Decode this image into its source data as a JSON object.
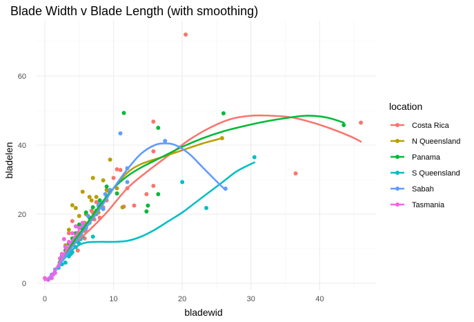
{
  "chart_data": {
    "type": "scatter",
    "title": "Blade Width v Blade Length (with smoothing)",
    "xlabel": "bladewid",
    "ylabel": "bladelen",
    "xlim": [
      -1.2,
      48.2
    ],
    "ylim": [
      -2,
      76
    ],
    "xticks": [
      0,
      10,
      20,
      30,
      40
    ],
    "yticks": [
      0,
      20,
      40,
      60
    ],
    "grid": true,
    "legend": {
      "title": "location",
      "position": "right"
    },
    "series": [
      {
        "name": "Costa Rica",
        "color": "#F8766D",
        "points": [
          [
            20.5,
            72
          ],
          [
            46,
            46.5
          ],
          [
            36.5,
            31.8
          ],
          [
            15.8,
            46.8
          ],
          [
            15.8,
            38.2
          ],
          [
            15.8,
            28.2
          ],
          [
            14.8,
            25.8
          ],
          [
            13,
            22.5
          ],
          [
            12,
            27.5
          ],
          [
            11.5,
            22.2
          ],
          [
            11,
            32.8
          ],
          [
            10.5,
            33
          ],
          [
            10,
            30.5
          ],
          [
            9.5,
            26.5
          ],
          [
            8.5,
            22
          ],
          [
            7.5,
            23.5
          ],
          [
            7,
            20.5
          ],
          [
            6.5,
            17.5
          ],
          [
            5.5,
            16
          ],
          [
            5,
            14.5
          ],
          [
            4.5,
            13.5
          ],
          [
            4,
            18
          ],
          [
            3.5,
            14.5
          ],
          [
            3,
            11
          ],
          [
            2.5,
            8.5
          ],
          [
            6,
            15
          ],
          [
            8,
            19
          ],
          [
            9,
            24
          ],
          [
            5.8,
            13
          ],
          [
            4.8,
            9.5
          ],
          [
            7.2,
            18.5
          ],
          [
            3.8,
            9
          ],
          [
            6.8,
            21
          ]
        ],
        "smooth": [
          [
            3,
            9.5
          ],
          [
            6,
            14.5
          ],
          [
            9,
            20.5
          ],
          [
            12,
            27.5
          ],
          [
            15,
            32.5
          ],
          [
            18,
            37
          ],
          [
            21,
            41.5
          ],
          [
            24,
            45
          ],
          [
            27,
            47.5
          ],
          [
            30,
            48.5
          ],
          [
            33,
            48.5
          ],
          [
            36,
            48
          ],
          [
            39,
            46.5
          ],
          [
            42,
            44.5
          ],
          [
            44.5,
            42.5
          ],
          [
            46,
            41
          ]
        ]
      },
      {
        "name": "N Queensland",
        "color": "#B79F00",
        "points": [
          [
            25.8,
            42
          ],
          [
            10.5,
            27.5
          ],
          [
            11.3,
            22
          ],
          [
            9.5,
            35.8
          ],
          [
            9,
            27
          ],
          [
            8,
            22
          ],
          [
            7,
            30.5
          ],
          [
            6.5,
            25
          ],
          [
            6,
            20
          ],
          [
            5.5,
            26.5
          ],
          [
            5,
            19.5
          ],
          [
            4.5,
            21.8
          ],
          [
            4,
            22.6
          ],
          [
            3.5,
            15.5
          ],
          [
            3,
            10.8
          ],
          [
            2.5,
            7.8
          ],
          [
            8.5,
            29.8
          ],
          [
            7.5,
            25
          ],
          [
            6.8,
            24
          ],
          [
            5.8,
            17.5
          ],
          [
            4.2,
            12.5
          ],
          [
            3.2,
            10
          ],
          [
            9.2,
            26.8
          ],
          [
            7.8,
            20.5
          ]
        ],
        "smooth": [
          [
            2,
            6
          ],
          [
            4,
            11
          ],
          [
            6,
            16
          ],
          [
            8,
            22
          ],
          [
            10,
            27.5
          ],
          [
            12,
            32
          ],
          [
            14,
            34.5
          ],
          [
            17,
            36.5
          ],
          [
            20,
            38.5
          ],
          [
            23,
            40.5
          ],
          [
            25.8,
            42
          ]
        ]
      },
      {
        "name": "Panama",
        "color": "#00BA38",
        "points": [
          [
            11.5,
            49.3
          ],
          [
            26,
            49.2
          ],
          [
            43.5,
            45.8
          ],
          [
            16.5,
            45
          ],
          [
            15,
            22.5
          ],
          [
            14.8,
            20.8
          ],
          [
            16.5,
            25.8
          ],
          [
            10.5,
            26
          ],
          [
            9,
            28
          ],
          [
            8,
            24
          ],
          [
            7,
            22
          ],
          [
            6,
            20.5
          ],
          [
            5,
            17
          ],
          [
            4.5,
            14.5
          ],
          [
            4,
            13
          ],
          [
            3.5,
            11.5
          ],
          [
            3,
            9.5
          ],
          [
            2.5,
            8
          ],
          [
            6.5,
            19
          ],
          [
            7.5,
            21
          ],
          [
            5.5,
            15.5
          ]
        ],
        "smooth": [
          [
            2,
            6
          ],
          [
            4,
            11.5
          ],
          [
            6,
            17
          ],
          [
            8,
            22.5
          ],
          [
            10,
            27.5
          ],
          [
            12,
            31
          ],
          [
            14,
            33.5
          ],
          [
            17,
            36.5
          ],
          [
            20,
            39.5
          ],
          [
            23,
            42
          ],
          [
            26,
            44
          ],
          [
            29,
            45.5
          ],
          [
            32,
            46.8
          ],
          [
            35,
            47.8
          ],
          [
            38,
            48.5
          ],
          [
            41,
            48
          ],
          [
            43.5,
            46.5
          ]
        ]
      },
      {
        "name": "S Queensland",
        "color": "#00BFC4",
        "points": [
          [
            30.5,
            36.5
          ],
          [
            23.5,
            21.8
          ],
          [
            20,
            29.3
          ],
          [
            6,
            16.5
          ],
          [
            5.5,
            13.5
          ],
          [
            5,
            11.5
          ],
          [
            4.5,
            10.5
          ],
          [
            4,
            9
          ],
          [
            3.5,
            7.8
          ],
          [
            3,
            6
          ],
          [
            2.5,
            5.5
          ],
          [
            2,
            4.5
          ],
          [
            7,
            13.5
          ],
          [
            4.8,
            12
          ],
          [
            3.8,
            8.5
          ],
          [
            5.2,
            12.8
          ]
        ],
        "smooth": [
          [
            1.5,
            4
          ],
          [
            3,
            7.5
          ],
          [
            4.5,
            10.5
          ],
          [
            6,
            11.8
          ],
          [
            8,
            12
          ],
          [
            10,
            12
          ],
          [
            12,
            12.3
          ],
          [
            14,
            13.5
          ],
          [
            16,
            15.5
          ],
          [
            18,
            18
          ],
          [
            20,
            20.5
          ],
          [
            22,
            23.5
          ],
          [
            24,
            26.5
          ],
          [
            26,
            29.5
          ],
          [
            28,
            32.5
          ],
          [
            30.5,
            35
          ]
        ]
      },
      {
        "name": "Sabah",
        "color": "#619CFF",
        "points": [
          [
            11,
            43.4
          ],
          [
            17.5,
            41.2
          ],
          [
            26.3,
            27.4
          ],
          [
            12,
            33.3
          ],
          [
            12,
            29.3
          ],
          [
            9.5,
            27
          ],
          [
            9,
            25
          ],
          [
            8.5,
            21.5
          ],
          [
            8,
            23
          ],
          [
            7.5,
            20
          ],
          [
            7,
            19
          ],
          [
            6.5,
            17.5
          ],
          [
            6,
            16
          ],
          [
            5.5,
            16.7
          ],
          [
            5,
            13
          ],
          [
            4.5,
            12.5
          ],
          [
            4,
            11.5
          ],
          [
            3.5,
            9
          ],
          [
            3,
            8.5
          ],
          [
            2.5,
            8
          ],
          [
            1.5,
            4
          ],
          [
            1,
            2.5
          ],
          [
            8.8,
            25.8
          ],
          [
            7.8,
            22.5
          ],
          [
            6.3,
            19.5
          ]
        ],
        "smooth": [
          [
            0.5,
            1
          ],
          [
            2,
            5
          ],
          [
            4,
            10.5
          ],
          [
            6,
            16
          ],
          [
            8,
            21.5
          ],
          [
            10,
            27.5
          ],
          [
            12,
            33
          ],
          [
            14,
            37.5
          ],
          [
            16,
            40
          ],
          [
            17.5,
            40.5
          ],
          [
            19,
            40
          ],
          [
            21,
            37.5
          ],
          [
            23,
            33.5
          ],
          [
            25,
            29.5
          ],
          [
            26.3,
            27
          ]
        ]
      },
      {
        "name": "Tasmania",
        "color": "#F564E3",
        "points": [
          [
            0,
            1.5
          ],
          [
            0.5,
            1
          ],
          [
            1,
            1.5
          ],
          [
            1.5,
            3
          ],
          [
            2,
            5
          ],
          [
            2.5,
            8.5
          ],
          [
            3,
            10.5
          ],
          [
            2.8,
            12.8
          ],
          [
            3.5,
            12
          ],
          [
            4,
            14.5
          ],
          [
            4.5,
            16.5
          ],
          [
            5,
            16
          ],
          [
            5.5,
            17.5
          ],
          [
            1.2,
            2.5
          ],
          [
            2.2,
            7.2
          ]
        ],
        "smooth": [
          [
            0,
            0.8
          ],
          [
            1,
            2.5
          ],
          [
            2,
            5.5
          ],
          [
            3,
            9
          ],
          [
            4,
            12.5
          ],
          [
            5,
            15.5
          ],
          [
            5.8,
            17.5
          ]
        ]
      }
    ]
  }
}
